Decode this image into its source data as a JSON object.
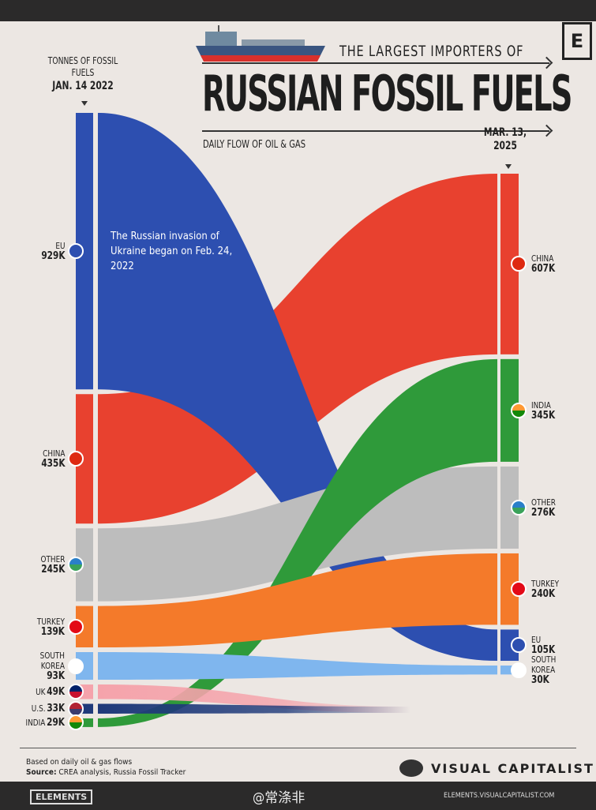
{
  "header": {
    "badge": "E",
    "subtitle": "THE LARGEST IMPORTERS OF",
    "title": "RUSSIAN FOSSIL FUELS",
    "tagline": "DAILY FLOW OF OIL & GAS",
    "left_unit": "TONNES OF FOSSIL FUELS",
    "left_date": "JAN. 14 2022",
    "right_date": "MAR. 13, 2025"
  },
  "annotation": "The Russian invasion of Ukraine began on Feb. 24, 2022",
  "chart_data": {
    "type": "sankey",
    "title": "RUSSIAN FOSSIL FUELS",
    "unit": "tonnes/day",
    "left": {
      "date": "JAN. 14 2022",
      "nodes": [
        {
          "name": "EU",
          "label": "929K",
          "value": 929,
          "color": "#2d4fb0",
          "flag": "eu"
        },
        {
          "name": "CHINA",
          "label": "435K",
          "value": 435,
          "color": "#e8412f",
          "flag": "cn"
        },
        {
          "name": "OTHER",
          "label": "245K",
          "value": 245,
          "color": "#bdbdbd",
          "flag": "globe"
        },
        {
          "name": "TURKEY",
          "label": "139K",
          "value": 139,
          "color": "#f47a2a",
          "flag": "tr"
        },
        {
          "name": "SOUTH KOREA",
          "label": "93K",
          "value": 93,
          "color": "#7fb6ee",
          "flag": "kr"
        },
        {
          "name": "UK",
          "label": "49K",
          "value": 49,
          "color": "#f5a3ab",
          "flag": "uk"
        },
        {
          "name": "U.S.",
          "label": "33K",
          "value": 33,
          "color": "#1f3a7a",
          "flag": "us"
        },
        {
          "name": "INDIA",
          "label": "29K",
          "value": 29,
          "color": "#2f9a3a",
          "flag": "in"
        }
      ]
    },
    "right": {
      "date": "MAR. 13, 2025",
      "nodes": [
        {
          "name": "CHINA",
          "label": "607K",
          "value": 607,
          "color": "#e8412f",
          "flag": "cn"
        },
        {
          "name": "INDIA",
          "label": "345K",
          "value": 345,
          "color": "#2f9a3a",
          "flag": "in"
        },
        {
          "name": "OTHER",
          "label": "276K",
          "value": 276,
          "color": "#bdbdbd",
          "flag": "globe"
        },
        {
          "name": "TURKEY",
          "label": "240K",
          "value": 240,
          "color": "#f47a2a",
          "flag": "tr"
        },
        {
          "name": "EU",
          "label": "105K",
          "value": 105,
          "color": "#2d4fb0",
          "flag": "eu"
        },
        {
          "name": "SOUTH KOREA",
          "label": "30K",
          "value": 30,
          "color": "#7fb6ee",
          "flag": "kr"
        }
      ]
    }
  },
  "footer": {
    "note": "Based on daily oil & gas flows",
    "source_label": "Source:",
    "source": "CREA analysis, Russia Fossil Tracker",
    "brand": "VISUAL CAPITALIST",
    "elements": "ELEMENTS",
    "watermark": "@常涤非",
    "site": "ELEMENTS.VISUALCAPITALIST.COM"
  }
}
